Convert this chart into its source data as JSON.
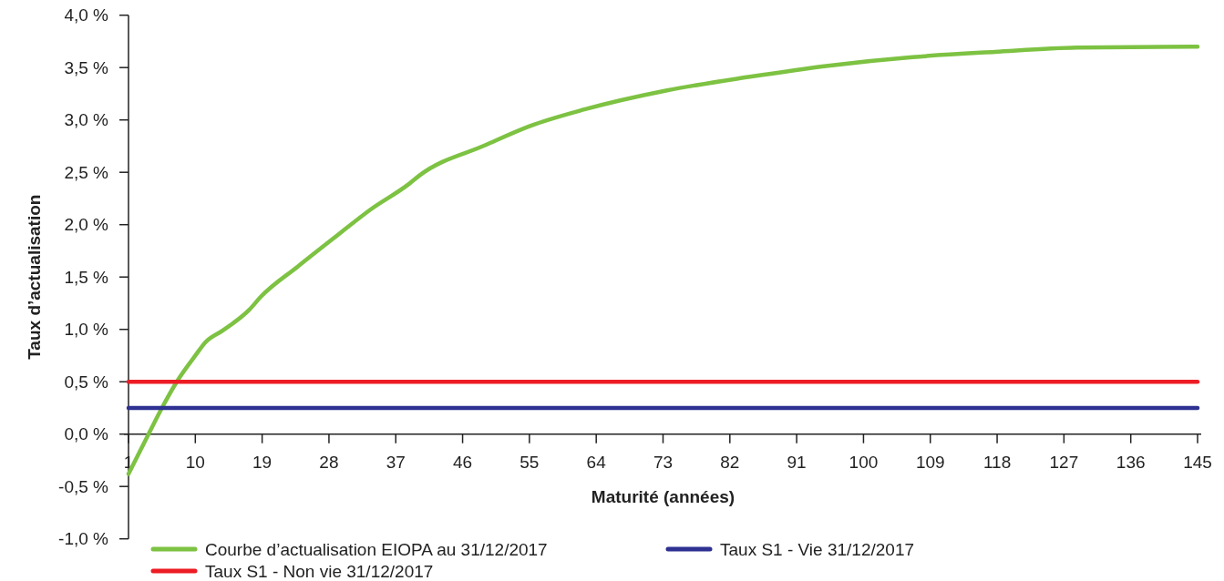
{
  "chart_data": {
    "type": "line",
    "xlabel": "Maturité (années)",
    "ylabel": "Taux d’actualisation",
    "xlim": [
      1,
      145
    ],
    "xticks": [
      1,
      10,
      19,
      28,
      37,
      46,
      55,
      64,
      73,
      82,
      91,
      100,
      109,
      118,
      127,
      136,
      145
    ],
    "ylim": [
      -1,
      4
    ],
    "yticks": [
      {
        "value": 4,
        "label": "4,0 %"
      },
      {
        "value": 3.5,
        "label": "3,5 %"
      },
      {
        "value": 3,
        "label": "3,0 %"
      },
      {
        "value": 2.5,
        "label": "2,5 %"
      },
      {
        "value": 2,
        "label": "2,0 %"
      },
      {
        "value": 1.5,
        "label": "1,5 %"
      },
      {
        "value": 1,
        "label": "1,0 %"
      },
      {
        "value": 0.5,
        "label": "0,5 %"
      },
      {
        "value": 0,
        "label": "0,0 %"
      },
      {
        "value": -0.5,
        "label": "-0,5 %"
      },
      {
        "value": -1,
        "label": "-1,0 %"
      }
    ],
    "grid": false,
    "legend": "bottom",
    "marker": "none",
    "line_style": "solid",
    "series": [
      {
        "name": "Courbe d’actualisation EIOPA au 31/12/2017",
        "color": "#7dc242",
        "x": [
          1,
          3.7,
          5.5,
          7.5,
          10,
          11.4,
          13.7,
          17.3,
          18.8,
          23.8,
          28.8,
          33.7,
          38.8,
          40.2,
          49.1,
          55,
          62.4,
          73.4,
          84.5,
          95.5,
          106.6,
          117.7,
          128.7,
          145
        ],
        "values": [
          -0.38,
          0,
          0.25,
          0.5,
          0.75,
          0.88,
          0.99,
          1.19,
          1.31,
          1.6,
          1.88,
          2.15,
          2.39,
          2.47,
          2.76,
          2.94,
          3.1,
          3.28,
          3.41,
          3.52,
          3.6,
          3.65,
          3.69,
          3.7
        ]
      },
      {
        "name": "Taux S1 - Vie 31/12/2017",
        "color": "#2e3192",
        "x": [
          1,
          145
        ],
        "values": [
          0.25,
          0.25
        ]
      },
      {
        "name": "Taux S1 - Non vie 31/12/2017",
        "color": "#ed1c24",
        "x": [
          1,
          145
        ],
        "values": [
          0.5,
          0.5
        ]
      }
    ]
  }
}
